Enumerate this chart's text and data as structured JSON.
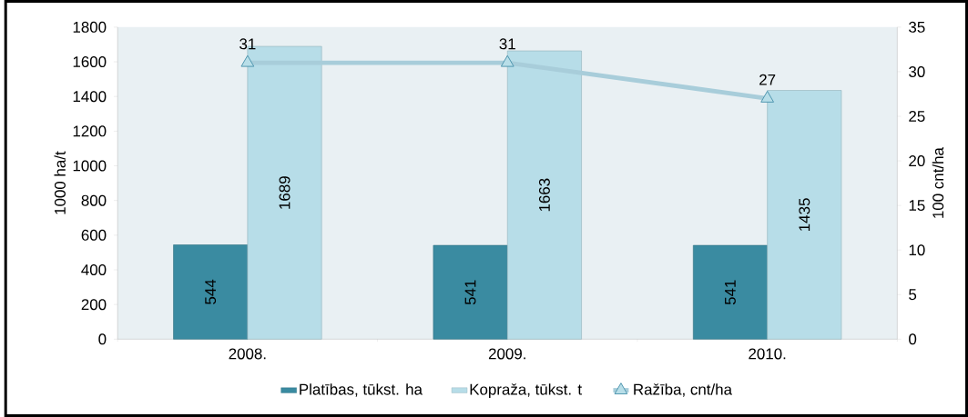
{
  "chart_data": {
    "type": "bar",
    "categories": [
      "2008.",
      "2009.",
      "2010."
    ],
    "ylabel": "1000 ha/t",
    "y2label": "100 cnt/ha",
    "ylim": [
      0,
      1800
    ],
    "yticks": [
      0,
      200,
      400,
      600,
      800,
      1000,
      1200,
      1400,
      1600,
      1800
    ],
    "y2lim": [
      0,
      35
    ],
    "y2ticks": [
      0,
      5,
      10,
      15,
      20,
      25,
      30,
      35
    ],
    "data_labels": true,
    "legend": "bottom",
    "series": [
      {
        "name": "Platības, tūkst. ha",
        "color": "#3a8ba1",
        "values": [
          544,
          541,
          541
        ]
      },
      {
        "name": "Kopraža, tūkst. t",
        "color": "#b7dde8",
        "values": [
          1689,
          1663,
          1435
        ]
      },
      {
        "name": "Ražība, cnt/ha",
        "type": "line",
        "axis": "y2",
        "marker": "triangle",
        "color": "#a8cdda",
        "values": [
          31,
          31,
          27
        ]
      }
    ]
  }
}
